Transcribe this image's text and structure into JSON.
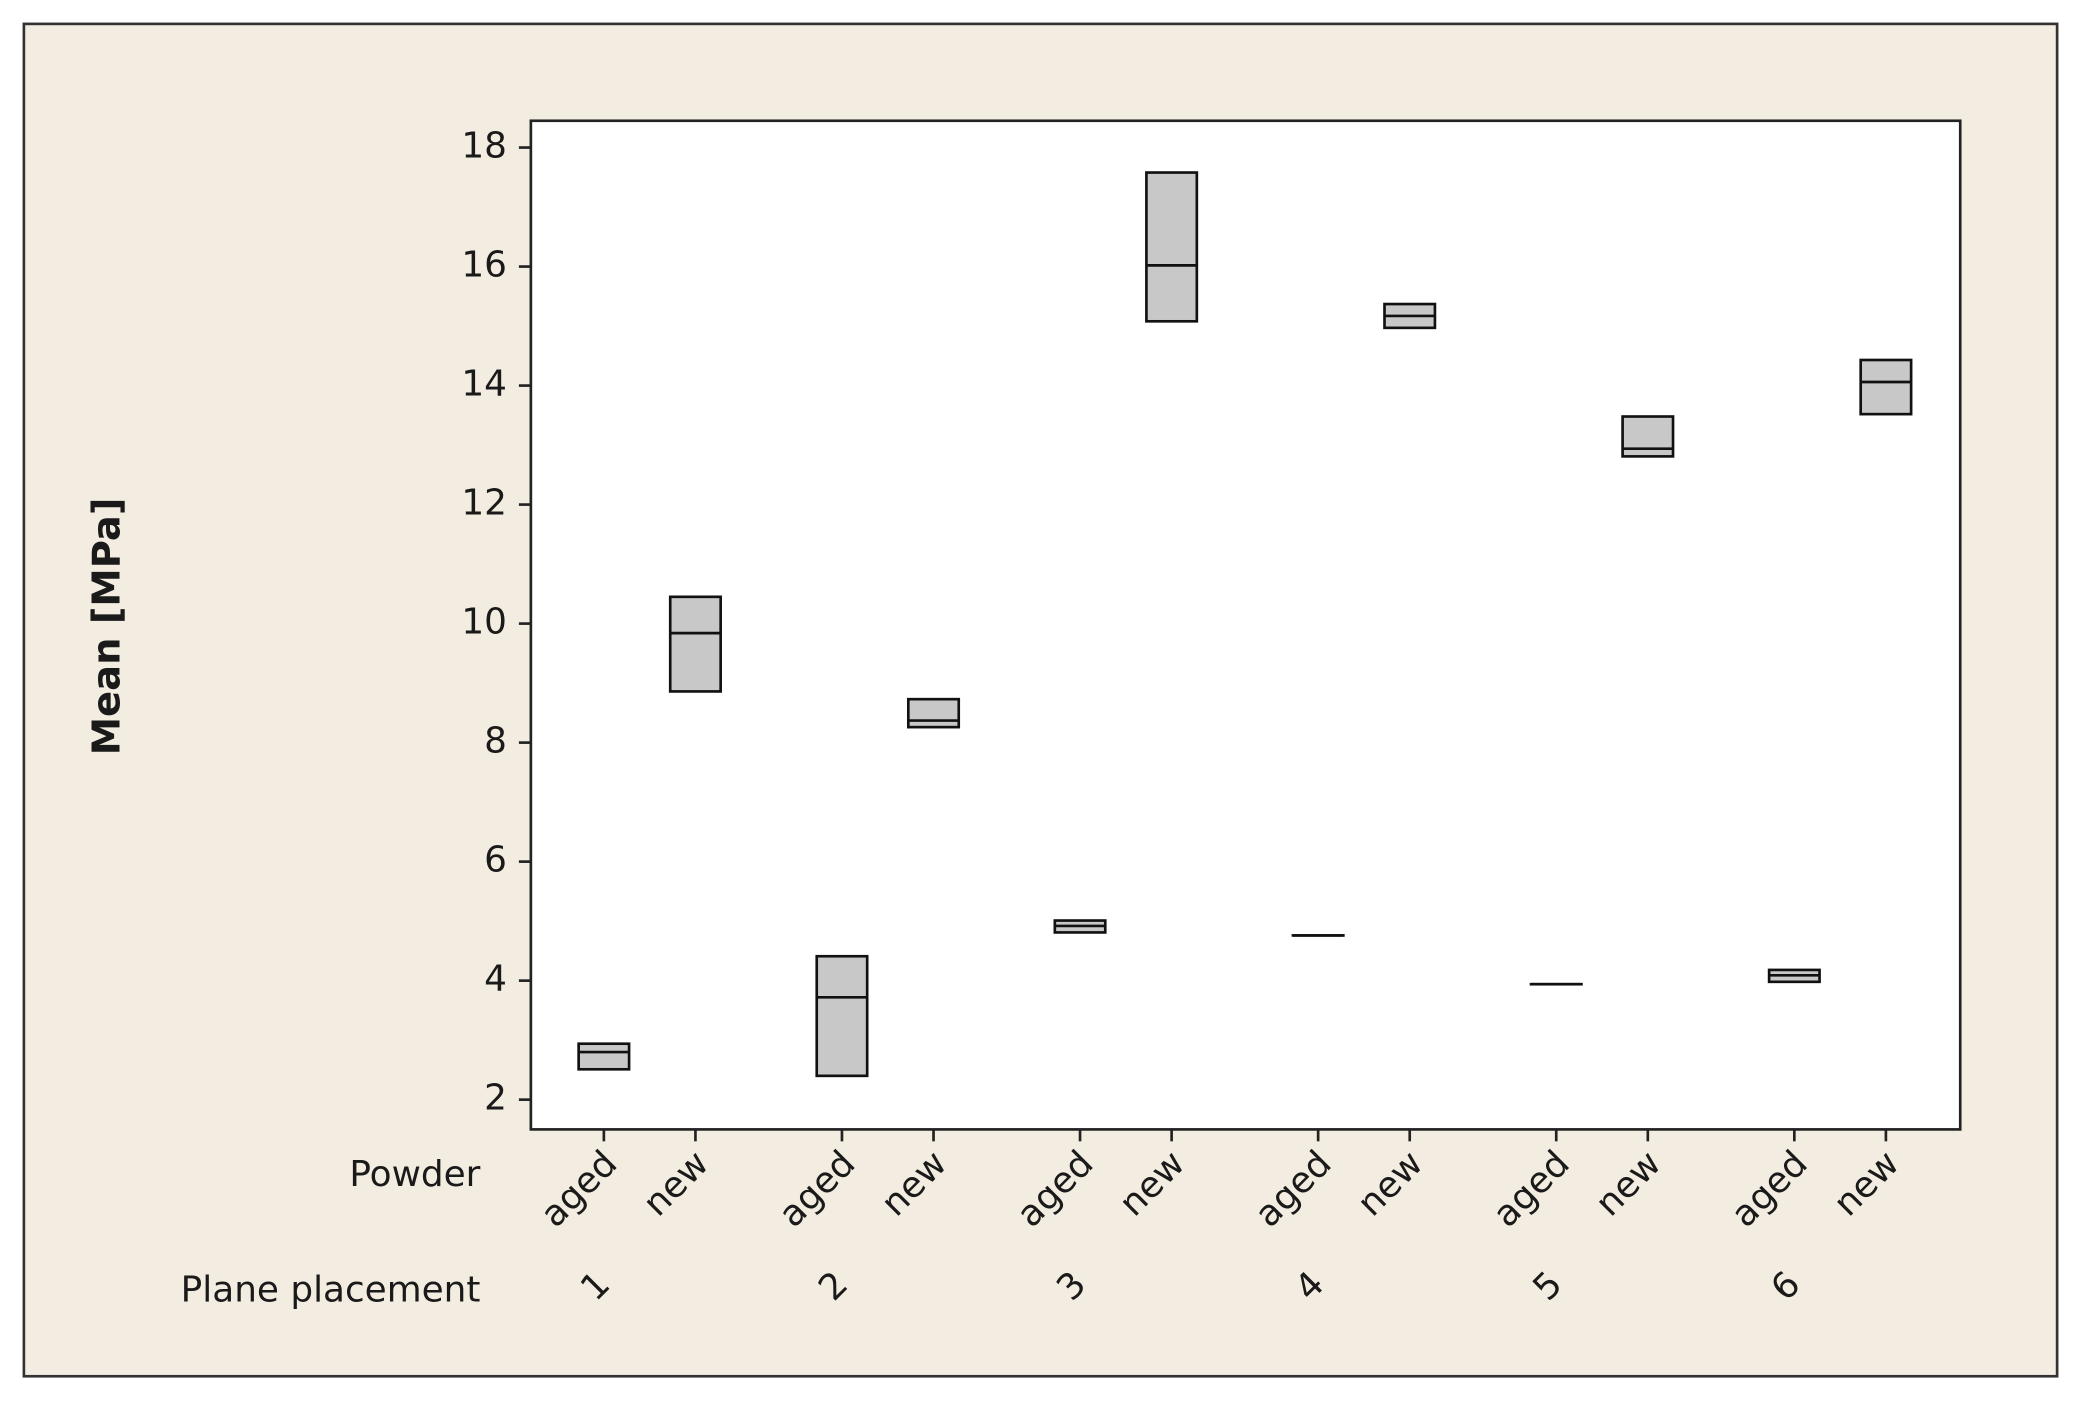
{
  "chart_data": {
    "type": "interval",
    "y_label": "Mean [MPa]",
    "row_labels": [
      "Powder",
      "Plane placement"
    ],
    "categories": [
      "aged",
      "new",
      "aged",
      "new",
      "aged",
      "new",
      "aged",
      "new",
      "aged",
      "new",
      "aged",
      "new"
    ],
    "groups": [
      "1",
      "2",
      "3",
      "4",
      "5",
      "6"
    ],
    "low": [
      2.51,
      8.86,
      2.4,
      8.26,
      4.81,
      15.08,
      4.76,
      14.97,
      3.94,
      12.81,
      3.98,
      13.52
    ],
    "mid": [
      2.8,
      9.84,
      3.72,
      8.37,
      4.92,
      16.02,
      4.76,
      15.17,
      3.94,
      12.94,
      4.09,
      14.06
    ],
    "high": [
      2.94,
      10.45,
      4.41,
      8.73,
      5.01,
      17.58,
      4.76,
      15.37,
      3.94,
      13.48,
      4.18,
      14.43
    ],
    "color": "#c8c8c8",
    "ylim": [
      1.5,
      18.45
    ],
    "yticks": [
      2,
      4,
      6,
      8,
      10,
      12,
      14,
      16,
      18
    ]
  }
}
